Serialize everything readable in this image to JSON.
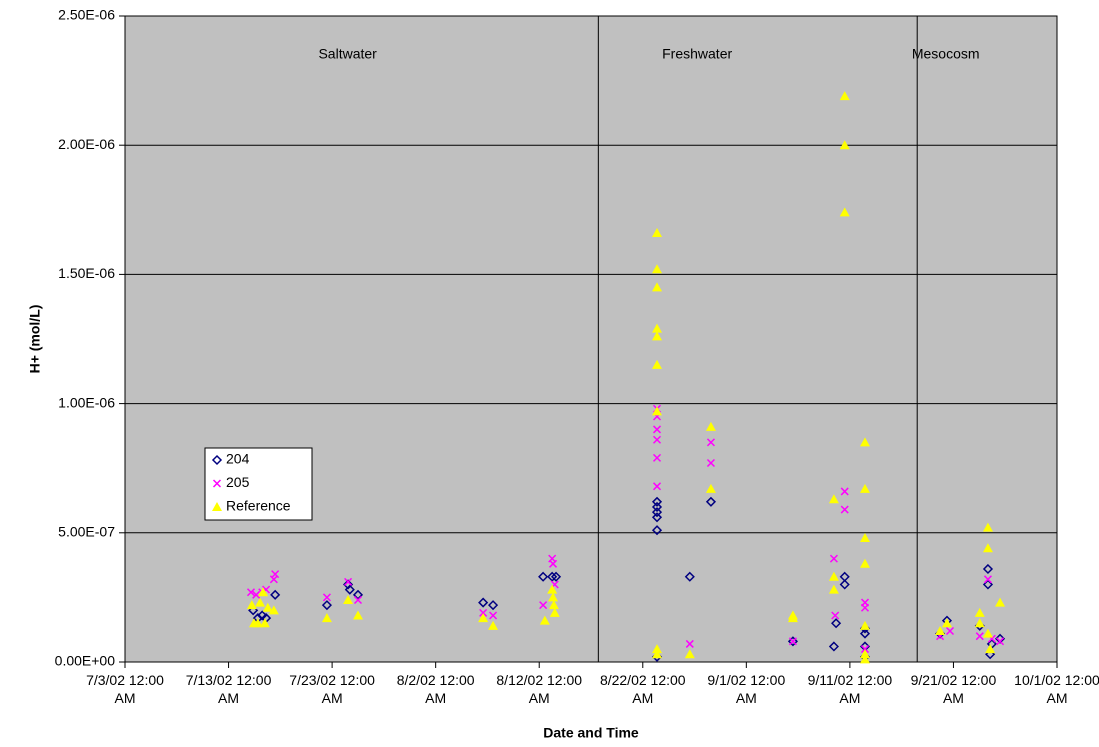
{
  "chart_data": {
    "type": "scatter",
    "x_label": "Date and Time",
    "y_label": "H+ (mol/L)",
    "xlim": [
      "2002-07-03T00:00",
      "2002-10-01T00:00"
    ],
    "xticks": [
      {
        "value": "2002-07-03T00:00",
        "label": "7/3/02 12:00 AM"
      },
      {
        "value": "2002-07-13T00:00",
        "label": "7/13/02 12:00 AM"
      },
      {
        "value": "2002-07-23T00:00",
        "label": "7/23/02 12:00 AM"
      },
      {
        "value": "2002-08-02T00:00",
        "label": "8/2/02 12:00 AM"
      },
      {
        "value": "2002-08-12T00:00",
        "label": "8/12/02 12:00 AM"
      },
      {
        "value": "2002-08-22T00:00",
        "label": "8/22/02 12:00 AM"
      },
      {
        "value": "2002-09-01T00:00",
        "label": "9/1/02 12:00 AM"
      },
      {
        "value": "2002-09-11T00:00",
        "label": "9/11/02 12:00 AM"
      },
      {
        "value": "2002-09-21T00:00",
        "label": "9/21/02 12:00 AM"
      },
      {
        "value": "2002-10-01T00:00",
        "label": "10/1/02 12:00 AM"
      }
    ],
    "ylim": [
      0,
      2.5e-06
    ],
    "yticks": [
      {
        "value": 0,
        "label": "0.00E+00"
      },
      {
        "value": 5e-07,
        "label": "5.00E-07"
      },
      {
        "value": 1e-06,
        "label": "1.00E-06"
      },
      {
        "value": 1.5e-06,
        "label": "1.50E-06"
      },
      {
        "value": 2e-06,
        "label": "2.00E-06"
      },
      {
        "value": 2.5e-06,
        "label": "2.50E-06"
      }
    ],
    "grid": true,
    "legend_position": "left",
    "dividers": [
      "2002-08-17T17:00",
      "2002-09-17T12:00"
    ],
    "annotations": [
      {
        "text": "Saltwater",
        "x": "2002-07-24T12:00"
      },
      {
        "text": "Freshwater",
        "x": "2002-08-27T06:00"
      },
      {
        "text": "Mesocosm",
        "x": "2002-09-20T06:00"
      }
    ],
    "series": [
      {
        "name": "204",
        "color": "#000080",
        "marker": "diamond",
        "x": [
          "2002-07-15T09:00",
          "2002-07-15T20:00",
          "2002-07-16T06:00",
          "2002-07-16T15:00",
          "2002-07-17T12:00",
          "2002-07-22T12:00",
          "2002-07-24T13:00",
          "2002-07-24T17:00",
          "2002-07-25T12:00",
          "2002-08-06T14:00",
          "2002-08-07T13:00",
          "2002-08-12T09:00",
          "2002-08-13T06:00",
          "2002-08-13T15:00",
          "2002-08-23T09:00",
          "2002-08-23T09:00",
          "2002-08-23T09:00",
          "2002-08-23T09:00",
          "2002-08-23T09:00",
          "2002-08-23T09:00",
          "2002-08-26T13:00",
          "2002-08-28T14:00",
          "2002-09-05T12:00",
          "2002-09-09T11:00",
          "2002-09-09T16:00",
          "2002-09-10T12:00",
          "2002-09-10T12:00",
          "2002-09-12T11:00",
          "2002-09-12T11:00",
          "2002-09-12T11:00",
          "2002-09-12T11:00",
          "2002-09-19T17:00",
          "2002-09-20T09:00",
          "2002-09-23T13:00",
          "2002-09-24T08:00",
          "2002-09-24T08:00",
          "2002-09-24T13:00",
          "2002-09-24T17:00",
          "2002-09-25T12:00"
        ],
        "values": [
          2e-07,
          1.7e-07,
          1.8e-07,
          1.7e-07,
          2.6e-07,
          2.2e-07,
          3e-07,
          2.8e-07,
          2.6e-07,
          2.3e-07,
          2.2e-07,
          3.3e-07,
          3.3e-07,
          3.3e-07,
          6.2e-07,
          6e-07,
          5.8e-07,
          5.6e-07,
          5.1e-07,
          2e-08,
          3.3e-07,
          6.2e-07,
          8e-08,
          6e-08,
          1.5e-07,
          3.3e-07,
          3e-07,
          1.3e-07,
          1.1e-07,
          6e-08,
          2e-08,
          1.1e-07,
          1.6e-07,
          1.4e-07,
          3.6e-07,
          3e-07,
          3e-08,
          7e-08,
          9e-08
        ]
      },
      {
        "name": "205",
        "color": "#ff00ff",
        "marker": "cross",
        "x": [
          "2002-07-15T04:00",
          "2002-07-15T16:00",
          "2002-07-16T06:00",
          "2002-07-16T15:00",
          "2002-07-17T09:00",
          "2002-07-17T12:00",
          "2002-07-22T12:00",
          "2002-07-24T13:00",
          "2002-07-25T12:00",
          "2002-08-06T14:00",
          "2002-08-07T13:00",
          "2002-08-12T09:00",
          "2002-08-13T06:00",
          "2002-08-13T08:00",
          "2002-08-13T12:00",
          "2002-08-23T09:00",
          "2002-08-23T09:00",
          "2002-08-23T09:00",
          "2002-08-23T09:00",
          "2002-08-23T09:00",
          "2002-08-23T09:00",
          "2002-08-23T09:00",
          "2002-08-26T13:00",
          "2002-08-28T14:00",
          "2002-08-28T14:00",
          "2002-09-05T12:00",
          "2002-09-09T11:00",
          "2002-09-09T14:00",
          "2002-09-10T12:00",
          "2002-09-10T12:00",
          "2002-09-12T11:00",
          "2002-09-12T11:00",
          "2002-09-12T11:00",
          "2002-09-19T17:00",
          "2002-09-20T16:00",
          "2002-09-23T13:00",
          "2002-09-24T08:00",
          "2002-09-24T17:00",
          "2002-09-25T12:00"
        ],
        "values": [
          2.7e-07,
          2.6e-07,
          2.7e-07,
          2.8e-07,
          3.2e-07,
          3.4e-07,
          2.5e-07,
          3.1e-07,
          2.4e-07,
          1.9e-07,
          1.8e-07,
          2.2e-07,
          4e-07,
          3.8e-07,
          3e-07,
          9.8e-07,
          9.5e-07,
          9e-07,
          8.6e-07,
          7.9e-07,
          6.8e-07,
          3e-08,
          7e-08,
          8.5e-07,
          7.7e-07,
          8e-08,
          4e-07,
          1.8e-07,
          6.6e-07,
          5.9e-07,
          2.3e-07,
          2.1e-07,
          5e-08,
          1e-07,
          1.2e-07,
          1e-07,
          3.2e-07,
          9e-08,
          8e-08
        ]
      },
      {
        "name": "Reference",
        "color": "#ffff00",
        "marker": "triangle",
        "x": [
          "2002-07-15T06:00",
          "2002-07-15T11:00",
          "2002-07-15T20:00",
          "2002-07-16T01:00",
          "2002-07-16T08:00",
          "2002-07-16T12:00",
          "2002-07-16T19:00",
          "2002-07-17T09:00",
          "2002-07-22T12:00",
          "2002-07-24T13:00",
          "2002-07-25T12:00",
          "2002-08-06T14:00",
          "2002-08-07T13:00",
          "2002-08-12T13:00",
          "2002-08-13T06:00",
          "2002-08-13T08:00",
          "2002-08-13T10:00",
          "2002-08-13T12:00",
          "2002-08-23T09:00",
          "2002-08-23T09:00",
          "2002-08-23T09:00",
          "2002-08-23T09:00",
          "2002-08-23T09:00",
          "2002-08-23T09:00",
          "2002-08-23T09:00",
          "2002-08-23T09:00",
          "2002-08-23T09:00",
          "2002-08-26T13:00",
          "2002-08-28T14:00",
          "2002-08-28T14:00",
          "2002-09-05T12:00",
          "2002-09-05T12:00",
          "2002-09-09T11:00",
          "2002-09-09T11:00",
          "2002-09-09T11:00",
          "2002-09-10T12:00",
          "2002-09-10T12:00",
          "2002-09-10T12:00",
          "2002-09-12T11:00",
          "2002-09-12T11:00",
          "2002-09-12T11:00",
          "2002-09-12T11:00",
          "2002-09-12T11:00",
          "2002-09-12T11:00",
          "2002-09-12T11:00",
          "2002-09-19T17:00",
          "2002-09-20T09:00",
          "2002-09-23T13:00",
          "2002-09-23T13:00",
          "2002-09-24T08:00",
          "2002-09-24T08:00",
          "2002-09-24T08:00",
          "2002-09-24T13:00",
          "2002-09-25T12:00"
        ],
        "values": [
          2.2e-07,
          1.5e-07,
          1.5e-07,
          2.3e-07,
          2.7e-07,
          1.5e-07,
          2.1e-07,
          2e-07,
          1.7e-07,
          2.4e-07,
          1.8e-07,
          1.7e-07,
          1.4e-07,
          1.6e-07,
          2.8e-07,
          2.5e-07,
          2.2e-07,
          1.9e-07,
          1.66e-06,
          1.52e-06,
          1.45e-06,
          1.29e-06,
          1.26e-06,
          1.15e-06,
          9.7e-07,
          5e-08,
          3e-08,
          3e-08,
          9.1e-07,
          6.7e-07,
          1.8e-07,
          1.7e-07,
          6.3e-07,
          3.3e-07,
          2.8e-07,
          2.19e-06,
          2e-06,
          1.74e-06,
          8.5e-07,
          6.7e-07,
          4.8e-07,
          3.8e-07,
          1.4e-07,
          3e-08,
          1e-08,
          1.2e-07,
          1.5e-07,
          1.9e-07,
          1.5e-07,
          5.2e-07,
          4.4e-07,
          1.1e-07,
          5e-08,
          2.3e-07
        ]
      }
    ]
  }
}
